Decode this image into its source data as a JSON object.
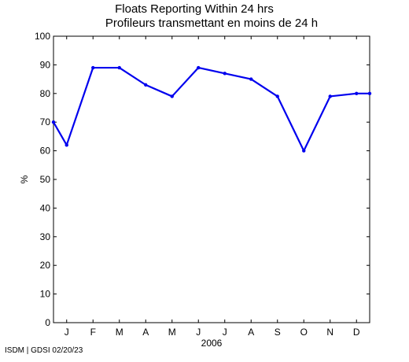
{
  "chart_data": {
    "type": "line",
    "title": [
      "Floats Reporting Within 24 hrs",
      "Profileurs transmettant en moins de 24 h"
    ],
    "ylabel": "%",
    "xlabel": "2006",
    "ylim": [
      0,
      100
    ],
    "yticks": [
      0,
      10,
      20,
      30,
      40,
      50,
      60,
      70,
      80,
      90,
      100
    ],
    "xlim": [
      0,
      12
    ],
    "xtick_positions": [
      0.5,
      1.5,
      2.5,
      3.5,
      4.5,
      5.5,
      6.5,
      7.5,
      8.5,
      9.5,
      10.5,
      11.5
    ],
    "xtick_labels": [
      "J",
      "F",
      "M",
      "A",
      "M",
      "J",
      "J",
      "A",
      "S",
      "O",
      "N",
      "D"
    ],
    "grid": false,
    "series": [
      {
        "color": "#0000ee",
        "x": [
          0,
          0.5,
          1.5,
          2.5,
          3.5,
          4.5,
          5.5,
          6.5,
          7.5,
          8.5,
          9.5,
          10.5,
          11.5,
          12
        ],
        "values": [
          70,
          62,
          89,
          89,
          83,
          79,
          89,
          87,
          85,
          79,
          60,
          79,
          80,
          80
        ]
      }
    ]
  },
  "footer": "ISDM | GDSI 02/20/23"
}
